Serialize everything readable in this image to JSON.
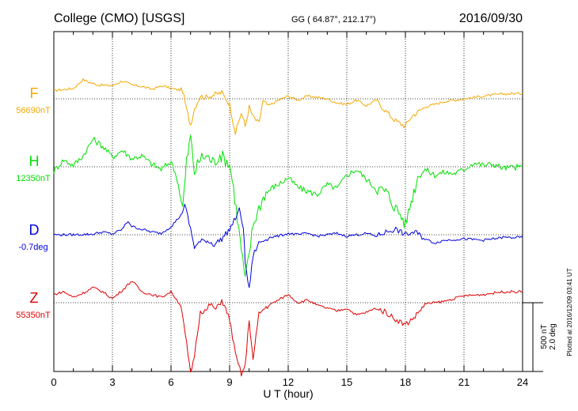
{
  "header": {
    "station": "College (CMO)  [USGS]",
    "coords": "GG ( 64.87°, 212.17°)",
    "date": "2016/09/30"
  },
  "colors": {
    "F": "#f5a800",
    "H": "#00e000",
    "D": "#0000e0",
    "Z": "#e00000",
    "axis": "#000000"
  },
  "side_note": "Plotted at 2016/12/09 03:41 UT",
  "scale_label": "500 nT\n2.0 deg",
  "chart_data": {
    "type": "line",
    "title": "College (CMO)  [USGS]",
    "xlabel": "U T (hour)",
    "xlim": [
      0,
      24
    ],
    "xticks": [
      0,
      3,
      6,
      9,
      12,
      15,
      18,
      21,
      24
    ],
    "grid": true,
    "y_units": "offset from baseline (nT / deg), 500 nT or 2.0 deg per scale bar",
    "series": [
      {
        "name": "F",
        "baseline_label": "56690nT",
        "color": "#f5a800",
        "x": [
          0,
          1,
          1.5,
          1.8,
          2.3,
          3,
          3.5,
          4,
          4.5,
          5,
          5.6,
          6,
          6.6,
          6.8,
          7,
          7.2,
          7.5,
          7.8,
          8.2,
          8.6,
          9,
          9.3,
          9.6,
          9.8,
          10,
          10.2,
          10.5,
          10.7,
          11,
          11.5,
          12,
          12.5,
          13,
          13.5,
          14,
          14.5,
          15,
          15.5,
          16,
          16.5,
          17,
          17.5,
          18,
          18.3,
          19,
          19.5,
          20,
          21,
          22,
          23,
          24
        ],
        "values": [
          60,
          75,
          140,
          120,
          100,
          95,
          130,
          100,
          90,
          70,
          95,
          75,
          60,
          -80,
          -190,
          -70,
          20,
          10,
          30,
          45,
          -40,
          -250,
          -100,
          -200,
          -60,
          -130,
          -180,
          -20,
          -50,
          -10,
          20,
          -10,
          20,
          10,
          0,
          -30,
          -40,
          -10,
          -50,
          -10,
          -90,
          -160,
          -200,
          -130,
          -60,
          -40,
          -20,
          0,
          20,
          35,
          40
        ]
      },
      {
        "name": "H",
        "baseline_label": "12350nT",
        "color": "#00e000",
        "x": [
          0,
          0.5,
          1,
          1.5,
          2,
          2.5,
          3,
          3.5,
          4,
          4.5,
          5,
          5.5,
          6,
          6.3,
          6.6,
          6.8,
          7,
          7.2,
          7.5,
          7.8,
          8.2,
          8.5,
          9,
          9.2,
          9.4,
          9.6,
          9.8,
          10,
          10.2,
          10.5,
          10.8,
          11.2,
          11.6,
          12,
          12.5,
          13,
          13.5,
          14,
          14.5,
          15,
          15.5,
          16,
          16.5,
          17,
          17.5,
          17.8,
          18,
          18.3,
          18.7,
          19,
          19.5,
          20,
          20.5,
          21,
          21.5,
          22,
          22.5,
          23,
          24
        ],
        "values": [
          -30,
          50,
          10,
          80,
          200,
          150,
          70,
          120,
          60,
          80,
          20,
          -20,
          40,
          -80,
          -300,
          40,
          220,
          -40,
          60,
          80,
          30,
          90,
          20,
          -150,
          -380,
          -600,
          -820,
          -640,
          -420,
          -300,
          -200,
          -150,
          -120,
          -80,
          -150,
          -180,
          -200,
          -130,
          -160,
          -60,
          -20,
          -90,
          -160,
          -180,
          -300,
          -360,
          -420,
          -250,
          -40,
          -20,
          -60,
          -40,
          -50,
          -20,
          30,
          10,
          20,
          -10,
          0
        ]
      },
      {
        "name": "D",
        "baseline_label": "-0.7deg",
        "color": "#0000e0",
        "x": [
          0,
          1,
          2,
          2.5,
          3,
          3.5,
          3.8,
          4,
          4.5,
          5,
          5.5,
          6,
          6.5,
          6.7,
          7,
          7.2,
          7.5,
          7.8,
          8.2,
          8.6,
          9,
          9.3,
          9.5,
          9.7,
          9.8,
          10,
          10.2,
          10.5,
          11,
          11.5,
          12,
          12.5,
          13,
          13.5,
          14,
          14.5,
          15,
          15.5,
          16,
          16.5,
          17,
          17.5,
          18,
          18.5,
          19,
          19.5,
          20,
          21,
          22,
          23,
          24
        ],
        "values": [
          0,
          0,
          5,
          20,
          5,
          40,
          100,
          60,
          40,
          20,
          10,
          60,
          140,
          220,
          40,
          -90,
          -50,
          -40,
          -70,
          -30,
          40,
          120,
          180,
          60,
          -200,
          -400,
          -150,
          -60,
          -20,
          -10,
          10,
          0,
          10,
          -10,
          0,
          10,
          -10,
          0,
          10,
          -10,
          20,
          40,
          0,
          20,
          -30,
          -60,
          -40,
          -30,
          -40,
          -20,
          -20
        ]
      },
      {
        "name": "Z",
        "baseline_label": "55350nT",
        "color": "#e00000",
        "x": [
          0,
          0.5,
          1,
          1.5,
          2,
          2.5,
          3,
          3.5,
          4,
          4.5,
          5,
          5.5,
          6,
          6.5,
          6.8,
          7,
          7.2,
          7.5,
          7.8,
          8,
          8.3,
          8.6,
          9,
          9.3,
          9.6,
          9.8,
          10,
          10.2,
          10.5,
          10.8,
          11,
          11.5,
          12,
          12.5,
          13,
          13.5,
          14,
          14.5,
          15,
          15.5,
          16,
          16.5,
          17,
          17.5,
          18,
          18.5,
          19,
          19.5,
          20,
          21,
          22,
          23,
          24
        ],
        "values": [
          60,
          80,
          40,
          70,
          110,
          80,
          30,
          90,
          160,
          80,
          60,
          40,
          80,
          -20,
          -300,
          -520,
          -380,
          -60,
          -60,
          -10,
          -50,
          20,
          -120,
          -380,
          -520,
          -460,
          -120,
          -420,
          -80,
          -40,
          -20,
          20,
          60,
          0,
          20,
          -20,
          -40,
          -60,
          -40,
          -90,
          -70,
          -40,
          -70,
          -120,
          -160,
          -100,
          -10,
          0,
          10,
          50,
          60,
          80,
          80
        ]
      }
    ]
  }
}
